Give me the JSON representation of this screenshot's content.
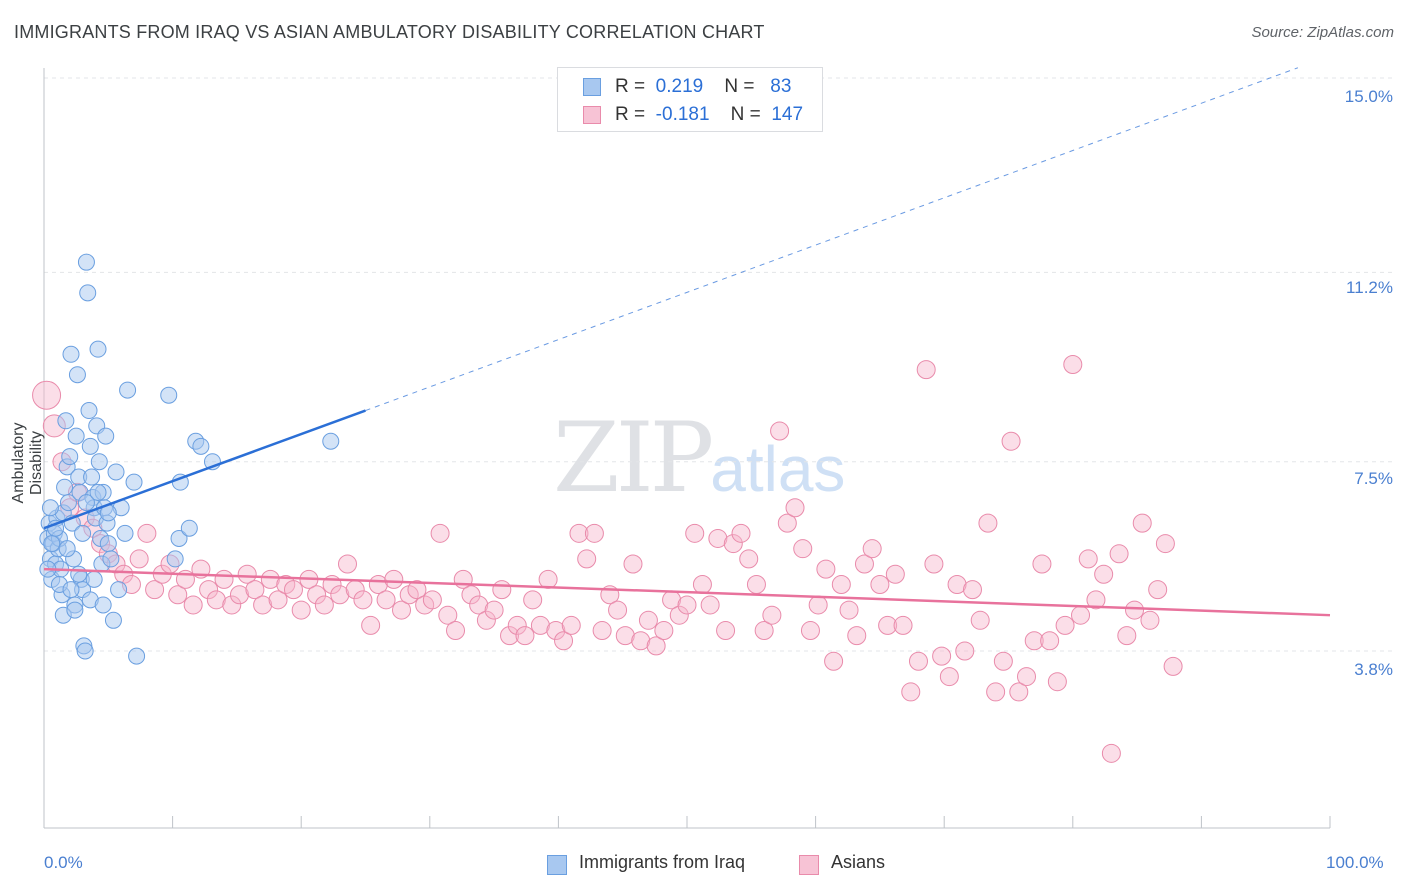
{
  "header": {
    "title": "IMMIGRANTS FROM IRAQ VS ASIAN AMBULATORY DISABILITY CORRELATION CHART",
    "source": "Source: ZipAtlas.com"
  },
  "legend": {
    "rows": [
      {
        "r_label": "R =",
        "r_value": "0.219",
        "n_label": "N =",
        "n_value": "83"
      },
      {
        "r_label": "R =",
        "r_value": "-0.181",
        "n_label": "N =",
        "n_value": "147"
      }
    ]
  },
  "bottom_legend": {
    "series1": "Immigrants from Iraq",
    "series2": "Asians"
  },
  "watermark": {
    "zip": "ZIP",
    "atlas": "atlas"
  },
  "colors": {
    "series1_fill": "#a8c8f0",
    "series1_stroke": "#6a9fe0",
    "series1_line": "#2b6fd6",
    "series2_fill": "#f7b6cc",
    "series2_stroke": "#e98bab",
    "series2_line": "#e8729c",
    "grid": "#e3e5e8",
    "tick_label": "#4a7fd0"
  },
  "chart_data": {
    "type": "scatter",
    "title": "IMMIGRANTS FROM IRAQ VS ASIAN AMBULATORY DISABILITY CORRELATION CHART",
    "ylabel": "Ambulatory Disability",
    "xlabel": "",
    "x_tick_labels": [
      "0.0%",
      "100.0%"
    ],
    "y_tick_labels": [
      "3.8%",
      "7.5%",
      "11.2%",
      "15.0%"
    ],
    "y_ticks": [
      3.8,
      7.5,
      11.2,
      15.0
    ],
    "xlim": [
      0,
      100
    ],
    "ylim": [
      0,
      15.5
    ],
    "grid": true,
    "legend_position": "top-center",
    "series": [
      {
        "name": "Immigrants from Iraq",
        "r": 0.219,
        "n": 83,
        "trend": {
          "x0": 0,
          "y0": 6.2,
          "x1": 25,
          "y1": 8.5,
          "dashed_to": {
            "x": 97.5,
            "y": 15.2
          }
        },
        "points": [
          [
            0.3,
            6.0
          ],
          [
            0.4,
            6.3
          ],
          [
            0.5,
            5.6
          ],
          [
            0.6,
            5.2
          ],
          [
            0.7,
            5.9
          ],
          [
            0.8,
            6.1
          ],
          [
            0.9,
            5.5
          ],
          [
            1.0,
            6.4
          ],
          [
            1.1,
            5.8
          ],
          [
            1.2,
            6.0
          ],
          [
            1.3,
            5.4
          ],
          [
            1.4,
            4.9
          ],
          [
            1.5,
            6.5
          ],
          [
            1.6,
            7.0
          ],
          [
            1.7,
            8.3
          ],
          [
            1.8,
            7.4
          ],
          [
            1.9,
            6.7
          ],
          [
            2.0,
            7.6
          ],
          [
            2.1,
            9.6
          ],
          [
            2.2,
            6.3
          ],
          [
            2.3,
            5.6
          ],
          [
            2.4,
            4.7
          ],
          [
            2.5,
            8.0
          ],
          [
            2.6,
            9.2
          ],
          [
            2.7,
            7.2
          ],
          [
            2.8,
            6.9
          ],
          [
            2.9,
            5.2
          ],
          [
            3.0,
            5.0
          ],
          [
            3.1,
            3.9
          ],
          [
            3.2,
            3.8
          ],
          [
            3.3,
            11.4
          ],
          [
            3.4,
            10.8
          ],
          [
            3.5,
            8.5
          ],
          [
            3.6,
            7.8
          ],
          [
            3.7,
            7.2
          ],
          [
            3.8,
            6.8
          ],
          [
            3.9,
            6.6
          ],
          [
            4.0,
            6.4
          ],
          [
            4.1,
            8.2
          ],
          [
            4.2,
            9.7
          ],
          [
            4.3,
            7.5
          ],
          [
            4.4,
            6.0
          ],
          [
            4.5,
            5.5
          ],
          [
            4.6,
            6.9
          ],
          [
            4.7,
            6.6
          ],
          [
            4.8,
            8.0
          ],
          [
            4.9,
            6.3
          ],
          [
            5.0,
            5.9
          ],
          [
            5.2,
            5.6
          ],
          [
            5.4,
            4.4
          ],
          [
            5.6,
            7.3
          ],
          [
            6.0,
            6.6
          ],
          [
            6.5,
            8.9
          ],
          [
            7.0,
            7.1
          ],
          [
            7.2,
            3.7
          ],
          [
            9.7,
            8.8
          ],
          [
            10.2,
            5.6
          ],
          [
            10.5,
            6.0
          ],
          [
            10.6,
            7.1
          ],
          [
            11.3,
            6.2
          ],
          [
            11.8,
            7.9
          ],
          [
            12.2,
            7.8
          ],
          [
            13.1,
            7.5
          ],
          [
            22.3,
            7.9
          ],
          [
            0.3,
            5.4
          ],
          [
            0.6,
            5.9
          ],
          [
            0.9,
            6.2
          ],
          [
            1.2,
            5.1
          ],
          [
            1.5,
            4.5
          ],
          [
            1.8,
            5.8
          ],
          [
            2.1,
            5.0
          ],
          [
            2.4,
            4.6
          ],
          [
            2.7,
            5.3
          ],
          [
            3.0,
            6.1
          ],
          [
            3.3,
            6.7
          ],
          [
            3.6,
            4.8
          ],
          [
            3.9,
            5.2
          ],
          [
            4.2,
            6.9
          ],
          [
            4.6,
            4.7
          ],
          [
            5.0,
            6.5
          ],
          [
            5.8,
            5.0
          ],
          [
            6.3,
            6.1
          ],
          [
            0.5,
            6.6
          ]
        ]
      },
      {
        "name": "Asians",
        "r": -0.181,
        "n": 147,
        "trend": {
          "x0": 0,
          "y0": 5.4,
          "x1": 100,
          "y1": 4.5
        },
        "points": [
          [
            0.2,
            8.8
          ],
          [
            0.8,
            8.2
          ],
          [
            1.4,
            7.5
          ],
          [
            2.0,
            6.6
          ],
          [
            2.6,
            6.9
          ],
          [
            3.2,
            6.4
          ],
          [
            3.8,
            6.2
          ],
          [
            4.4,
            5.9
          ],
          [
            5.0,
            5.7
          ],
          [
            5.6,
            5.5
          ],
          [
            6.2,
            5.3
          ],
          [
            6.8,
            5.1
          ],
          [
            7.4,
            5.6
          ],
          [
            8.0,
            6.1
          ],
          [
            8.6,
            5.0
          ],
          [
            9.2,
            5.3
          ],
          [
            9.8,
            5.5
          ],
          [
            10.4,
            4.9
          ],
          [
            11.0,
            5.2
          ],
          [
            11.6,
            4.7
          ],
          [
            12.2,
            5.4
          ],
          [
            12.8,
            5.0
          ],
          [
            13.4,
            4.8
          ],
          [
            14.0,
            5.2
          ],
          [
            14.6,
            4.7
          ],
          [
            15.2,
            4.9
          ],
          [
            15.8,
            5.3
          ],
          [
            16.4,
            5.0
          ],
          [
            17.0,
            4.7
          ],
          [
            17.6,
            5.2
          ],
          [
            18.2,
            4.8
          ],
          [
            18.8,
            5.1
          ],
          [
            19.4,
            5.0
          ],
          [
            20.0,
            4.6
          ],
          [
            20.6,
            5.2
          ],
          [
            21.2,
            4.9
          ],
          [
            21.8,
            4.7
          ],
          [
            22.4,
            5.1
          ],
          [
            23.0,
            4.9
          ],
          [
            23.6,
            5.5
          ],
          [
            24.2,
            5.0
          ],
          [
            24.8,
            4.8
          ],
          [
            25.4,
            4.3
          ],
          [
            26.0,
            5.1
          ],
          [
            26.6,
            4.8
          ],
          [
            27.2,
            5.2
          ],
          [
            27.8,
            4.6
          ],
          [
            28.4,
            4.9
          ],
          [
            29.0,
            5.0
          ],
          [
            29.6,
            4.7
          ],
          [
            30.2,
            4.8
          ],
          [
            30.8,
            6.1
          ],
          [
            31.4,
            4.5
          ],
          [
            32.0,
            4.2
          ],
          [
            32.6,
            5.2
          ],
          [
            33.2,
            4.9
          ],
          [
            33.8,
            4.7
          ],
          [
            34.4,
            4.4
          ],
          [
            35.0,
            4.6
          ],
          [
            35.6,
            5.0
          ],
          [
            36.2,
            4.1
          ],
          [
            36.8,
            4.3
          ],
          [
            37.4,
            4.1
          ],
          [
            38.0,
            4.8
          ],
          [
            38.6,
            4.3
          ],
          [
            39.2,
            5.2
          ],
          [
            39.8,
            4.2
          ],
          [
            40.4,
            4.0
          ],
          [
            41.0,
            4.3
          ],
          [
            41.6,
            6.1
          ],
          [
            42.2,
            5.6
          ],
          [
            42.8,
            6.1
          ],
          [
            43.4,
            4.2
          ],
          [
            44.0,
            4.9
          ],
          [
            44.6,
            4.6
          ],
          [
            45.2,
            4.1
          ],
          [
            45.8,
            5.5
          ],
          [
            46.4,
            4.0
          ],
          [
            47.0,
            4.4
          ],
          [
            47.6,
            3.9
          ],
          [
            48.2,
            4.2
          ],
          [
            48.8,
            4.8
          ],
          [
            49.4,
            4.5
          ],
          [
            50.0,
            4.7
          ],
          [
            50.6,
            6.1
          ],
          [
            51.2,
            5.1
          ],
          [
            51.8,
            4.7
          ],
          [
            52.4,
            6.0
          ],
          [
            53.0,
            4.2
          ],
          [
            53.6,
            5.9
          ],
          [
            54.2,
            6.1
          ],
          [
            54.8,
            5.6
          ],
          [
            55.4,
            5.1
          ],
          [
            56.0,
            4.2
          ],
          [
            56.6,
            4.5
          ],
          [
            57.2,
            8.1
          ],
          [
            57.8,
            6.3
          ],
          [
            58.4,
            6.6
          ],
          [
            59.0,
            5.8
          ],
          [
            59.6,
            4.2
          ],
          [
            60.2,
            4.7
          ],
          [
            60.8,
            5.4
          ],
          [
            61.4,
            3.6
          ],
          [
            62.0,
            5.1
          ],
          [
            62.6,
            4.6
          ],
          [
            63.2,
            4.1
          ],
          [
            63.8,
            5.5
          ],
          [
            64.4,
            5.8
          ],
          [
            65.0,
            5.1
          ],
          [
            65.6,
            4.3
          ],
          [
            66.2,
            5.3
          ],
          [
            66.8,
            4.3
          ],
          [
            67.4,
            3.0
          ],
          [
            68.0,
            3.6
          ],
          [
            68.6,
            9.3
          ],
          [
            69.2,
            5.5
          ],
          [
            69.8,
            3.7
          ],
          [
            70.4,
            3.3
          ],
          [
            71.0,
            5.1
          ],
          [
            71.6,
            3.8
          ],
          [
            72.2,
            5.0
          ],
          [
            72.8,
            4.4
          ],
          [
            73.4,
            6.3
          ],
          [
            74.0,
            3.0
          ],
          [
            74.6,
            3.6
          ],
          [
            75.2,
            7.9
          ],
          [
            75.8,
            3.0
          ],
          [
            76.4,
            3.3
          ],
          [
            77.0,
            4.0
          ],
          [
            77.6,
            5.5
          ],
          [
            78.2,
            4.0
          ],
          [
            78.8,
            3.2
          ],
          [
            79.4,
            4.3
          ],
          [
            80.0,
            9.4
          ],
          [
            80.6,
            4.5
          ],
          [
            81.2,
            5.6
          ],
          [
            81.8,
            4.8
          ],
          [
            82.4,
            5.3
          ],
          [
            83.0,
            1.8
          ],
          [
            83.6,
            5.7
          ],
          [
            84.2,
            4.1
          ],
          [
            84.8,
            4.6
          ],
          [
            85.4,
            6.3
          ],
          [
            86.0,
            4.4
          ],
          [
            86.6,
            5.0
          ],
          [
            87.2,
            5.9
          ],
          [
            87.8,
            3.5
          ]
        ]
      }
    ]
  }
}
